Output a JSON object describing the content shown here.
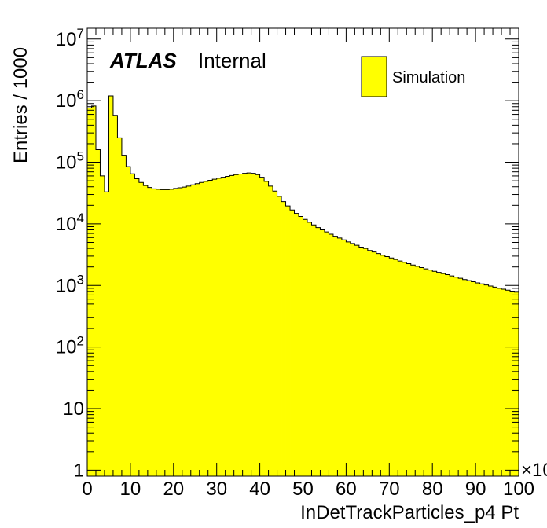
{
  "chart_data": {
    "type": "bar",
    "style": "histogram-step-filled",
    "brand_label": "ATLAS",
    "status_label": "Internal",
    "xlabel": "InDetTrackParticles_p4 Pt",
    "ylabel": "Entries / 1000",
    "x_multiplier_label": "×10",
    "xlim": [
      0,
      100
    ],
    "x_ticks": [
      0,
      10,
      20,
      30,
      40,
      50,
      60,
      70,
      80,
      90,
      100
    ],
    "y_scale": "log",
    "ylim": [
      0.8,
      15000000
    ],
    "y_ticks": [
      {
        "value": 1,
        "base": "1",
        "exp": ""
      },
      {
        "value": 10,
        "base": "10",
        "exp": ""
      },
      {
        "value": 100,
        "base": "10",
        "exp": "2"
      },
      {
        "value": 1000,
        "base": "10",
        "exp": "3"
      },
      {
        "value": 10000,
        "base": "10",
        "exp": "4"
      },
      {
        "value": 100000,
        "base": "10",
        "exp": "5"
      },
      {
        "value": 1000000,
        "base": "10",
        "exp": "6"
      },
      {
        "value": 10000000,
        "base": "10",
        "exp": "7"
      }
    ],
    "bin_width": 1,
    "series": [
      {
        "name": "Simulation",
        "color": "#ffff00",
        "edge_color": "#000000",
        "bin_low_edges": [
          0,
          1,
          2,
          3,
          4,
          5,
          6,
          7,
          8,
          9,
          10,
          11,
          12,
          13,
          14,
          15,
          16,
          17,
          18,
          19,
          20,
          21,
          22,
          23,
          24,
          25,
          26,
          27,
          28,
          29,
          30,
          31,
          32,
          33,
          34,
          35,
          36,
          37,
          38,
          39,
          40,
          41,
          42,
          43,
          44,
          45,
          46,
          47,
          48,
          49,
          50,
          51,
          52,
          53,
          54,
          55,
          56,
          57,
          58,
          59,
          60,
          61,
          62,
          63,
          64,
          65,
          66,
          67,
          68,
          69,
          70,
          71,
          72,
          73,
          74,
          75,
          76,
          77,
          78,
          79,
          80,
          81,
          82,
          83,
          84,
          85,
          86,
          87,
          88,
          89,
          90,
          91,
          92,
          93,
          94,
          95,
          96,
          97,
          98,
          99
        ],
        "values": [
          760000,
          820000,
          160000,
          60000,
          33000,
          1200000,
          580000,
          250000,
          130000,
          85000,
          65000,
          54000,
          47000,
          42000,
          39000,
          37000,
          36500,
          36000,
          36000,
          36500,
          37500,
          38500,
          39500,
          41000,
          43000,
          45000,
          47000,
          49000,
          51000,
          53000,
          55000,
          57000,
          59000,
          61000,
          63000,
          64500,
          66000,
          67000,
          66000,
          63000,
          57000,
          49000,
          41000,
          34000,
          28000,
          23000,
          19500,
          16800,
          14800,
          13200,
          11800,
          10600,
          9600,
          8700,
          8000,
          7400,
          6800,
          6300,
          5900,
          5500,
          5100,
          4800,
          4500,
          4200,
          4000,
          3700,
          3500,
          3300,
          3100,
          2950,
          2800,
          2650,
          2500,
          2380,
          2260,
          2150,
          2050,
          1950,
          1860,
          1780,
          1700,
          1630,
          1560,
          1500,
          1430,
          1370,
          1310,
          1250,
          1200,
          1150,
          1100,
          1060,
          1020,
          980,
          940,
          900,
          870,
          840,
          810,
          780
        ]
      }
    ],
    "legend": {
      "position": "top-right",
      "entries": [
        "Simulation"
      ]
    },
    "grid": false
  }
}
